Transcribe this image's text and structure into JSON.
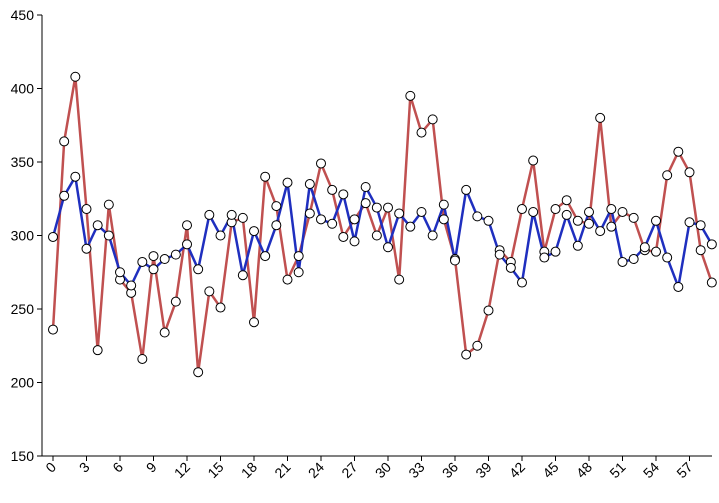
{
  "chart_data": {
    "type": "line",
    "title": "",
    "xlabel": "",
    "ylabel": "",
    "ylim": [
      150,
      450
    ],
    "yticks": [
      150,
      200,
      250,
      300,
      350,
      400,
      450
    ],
    "xticks": [
      0,
      3,
      6,
      9,
      12,
      15,
      18,
      21,
      24,
      27,
      30,
      33,
      36,
      39,
      42,
      45,
      48,
      51,
      54,
      57
    ],
    "grid": false,
    "legend": "none",
    "colors": {
      "red_series": "#c05050",
      "blue_series": "#1f2fbf",
      "marker_fill": "#ffffff",
      "axis": "#000000"
    },
    "series": [
      {
        "values": [
          236,
          364,
          408,
          318,
          222,
          321,
          270,
          261,
          216,
          286,
          234,
          255,
          307,
          207,
          262,
          251,
          309,
          312,
          241,
          340,
          320,
          270,
          286,
          315,
          349,
          331,
          299,
          311,
          322,
          300,
          319,
          270,
          395,
          370,
          379,
          311,
          284,
          219,
          225,
          249,
          290,
          282,
          318,
          351,
          289,
          318,
          324,
          310,
          308,
          380,
          306,
          316,
          312,
          290,
          289,
          341,
          357,
          343,
          290,
          268
        ]
      },
      {
        "values": [
          299,
          327,
          340,
          291,
          307,
          300,
          275,
          266,
          282,
          277,
          284,
          287,
          294,
          277,
          314,
          300,
          314,
          273,
          303,
          286,
          307,
          336,
          275,
          335,
          311,
          308,
          328,
          296,
          333,
          319,
          292,
          315,
          306,
          316,
          300,
          321,
          283,
          331,
          313,
          310,
          287,
          278,
          268,
          316,
          285,
          289,
          314,
          293,
          316,
          303,
          318,
          282,
          284,
          292,
          310,
          285,
          265,
          309,
          307,
          294
        ]
      }
    ]
  }
}
